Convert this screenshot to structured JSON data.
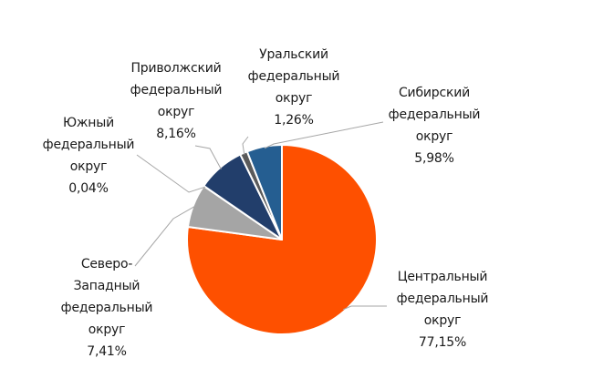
{
  "chart_data": {
    "type": "pie",
    "title": "",
    "start_angle_deg": 0,
    "direction": "clockwise",
    "slices": [
      {
        "name": "Центральный федеральный округ",
        "value": 77.15,
        "color": "#fe5000",
        "label_lines": [
          "Центральный",
          "федеральный",
          "округ"
        ],
        "value_label": "77,15%"
      },
      {
        "name": "Северо-Западный федеральный округ",
        "value": 7.41,
        "color": "#a5a5a5",
        "label_lines": [
          "Северо-",
          "Западный",
          "федеральный",
          "округ"
        ],
        "value_label": "7,41%"
      },
      {
        "name": "Южный федеральный округ",
        "value": 0.04,
        "color": "#6fa0d6",
        "label_lines": [
          "Южный",
          "федеральный",
          "округ"
        ],
        "value_label": "0,04%"
      },
      {
        "name": "Приволжский федеральный округ",
        "value": 8.16,
        "color": "#223e6b",
        "label_lines": [
          "Приволжский",
          "федеральный",
          "округ"
        ],
        "value_label": "8,16%"
      },
      {
        "name": "Уральский федеральный округ",
        "value": 1.26,
        "color": "#5a5a5a",
        "label_lines": [
          "Уральский",
          "федеральный",
          "округ"
        ],
        "value_label": "1,26%"
      },
      {
        "name": "Сибирский федеральный округ",
        "value": 5.98,
        "color": "#255e91",
        "label_lines": [
          "Сибирский",
          "федеральный",
          "округ"
        ],
        "value_label": "5,98%"
      }
    ],
    "leader_color": "#a6a6a6",
    "legend": "none"
  }
}
